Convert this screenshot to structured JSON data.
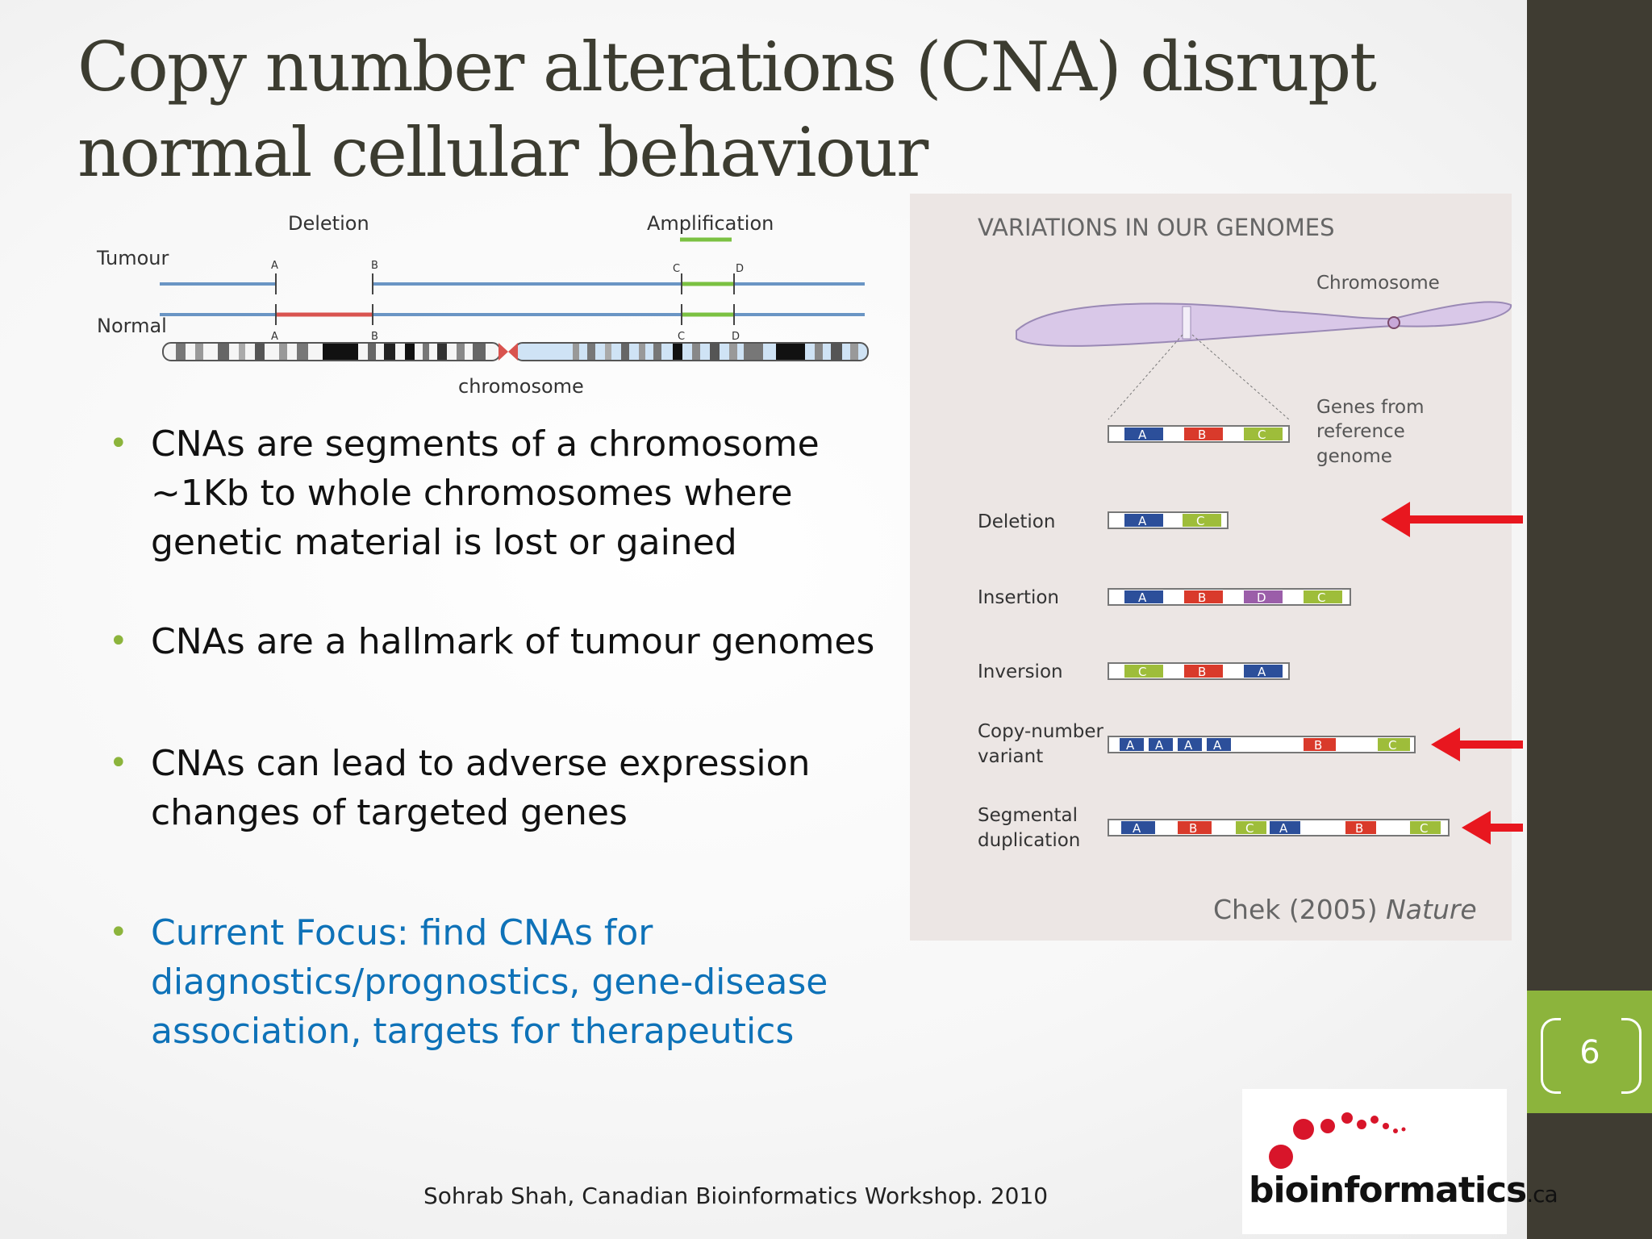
{
  "slide": {
    "title_line1": "Copy number alterations (CNA) disrupt",
    "title_line2": "normal cellular behaviour",
    "page_number": "6",
    "footer": "Sohrab Shah, Canadian Bioinformatics Workshop. 2010",
    "accent_green": "#8cb43c",
    "focus_blue": "#0e72b8",
    "sidebar_color": "#3f3c32"
  },
  "bullets": [
    "CNAs are segments of a chromosome ~1Kb to whole chromosomes where genetic material is lost or gained",
    "CNAs are a hallmark of tumour genomes",
    "CNAs can lead to adverse expression changes of targeted genes",
    "Current Focus: find CNAs for diagnostics/prognostics, gene-disease association, targets for therapeutics"
  ],
  "left_figure": {
    "deletion_label": "Deletion",
    "amplification_label": "Amplification",
    "tumour_label": "Tumour",
    "normal_label": "Normal",
    "chromosome_label": "chromosome",
    "marker_a": "A",
    "marker_b": "B",
    "marker_c": "C",
    "marker_d": "D"
  },
  "right_figure": {
    "heading": "VARIATIONS IN OUR GENOMES",
    "chromosome_label": "Chromosome",
    "genes_label_1": "Genes from",
    "genes_label_2": "reference",
    "genes_label_3": "genome",
    "rows": {
      "deletion": "Deletion",
      "insertion": "Insertion",
      "inversion": "Inversion",
      "cnv_1": "Copy-number",
      "cnv_2": "variant",
      "segdup_1": "Segmental",
      "segdup_2": "duplication"
    },
    "gene_a": "A",
    "gene_b": "B",
    "gene_c": "C",
    "gene_d": "D",
    "citation_author": "Chek (2005)",
    "citation_journal": "Nature"
  },
  "logo": {
    "text": "bioinformatics",
    "tld": ".ca"
  }
}
